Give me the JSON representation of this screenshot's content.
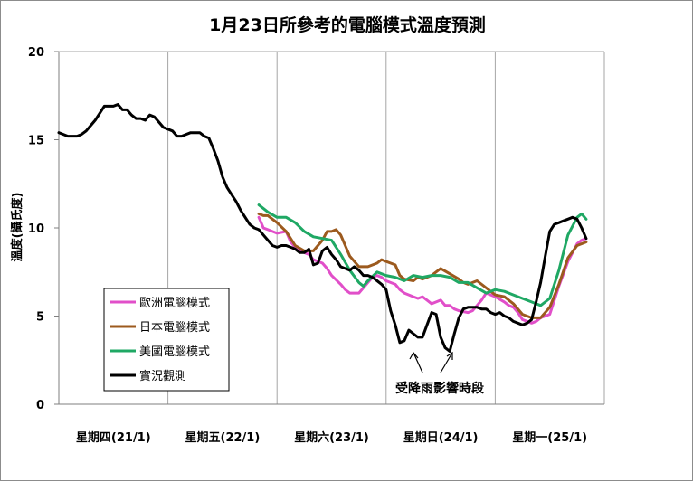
{
  "chart_data": {
    "type": "line",
    "title": "1月23日所參考的電腦模式溫度預測",
    "ylabel": "溫度(攝氏度)",
    "xlabel": "",
    "ylim": [
      0,
      20
    ],
    "yticks": [
      0,
      5,
      10,
      15,
      20
    ],
    "xlim": [
      0,
      120
    ],
    "categories": [
      "星期四(21/1)",
      "星期五(22/1)",
      "星期六(23/1)",
      "星期日(24/1)",
      "星期一(25/1)"
    ],
    "category_centers": [
      12,
      36,
      60,
      84,
      108
    ],
    "day_boundaries": [
      24,
      48,
      72,
      96
    ],
    "legend_position": "left-bottom",
    "annotation": "受降雨影響時段",
    "series": [
      {
        "name": "歐洲電腦模式",
        "color": "#e14fc9",
        "x": [
          44,
          45,
          46,
          48,
          50,
          51,
          52,
          54,
          55,
          56,
          58,
          59,
          60,
          62,
          63,
          64,
          66,
          68,
          69,
          70,
          71,
          72,
          74,
          75,
          76,
          78,
          79,
          80,
          81,
          82,
          84,
          85,
          86,
          87,
          88,
          90,
          91,
          92,
          93,
          94,
          96,
          98,
          99,
          100,
          101,
          102,
          104,
          105,
          106,
          108,
          110,
          112,
          114,
          115,
          116
        ],
        "y": [
          10.6,
          10.0,
          9.9,
          9.7,
          9.8,
          9.2,
          8.9,
          8.6,
          8.5,
          8.2,
          8.0,
          7.7,
          7.3,
          6.8,
          6.5,
          6.3,
          6.3,
          6.9,
          7.2,
          7.3,
          7.2,
          7.0,
          6.8,
          6.5,
          6.3,
          6.1,
          6.0,
          6.1,
          5.9,
          5.7,
          5.9,
          5.6,
          5.6,
          5.4,
          5.3,
          5.2,
          5.3,
          5.6,
          5.9,
          6.3,
          6.1,
          5.8,
          5.6,
          5.5,
          5.2,
          4.8,
          4.6,
          4.7,
          4.9,
          5.1,
          6.7,
          8.1,
          9.1,
          9.3,
          9.4
        ]
      },
      {
        "name": "日本電腦模式",
        "color": "#9c5a1e",
        "x": [
          44,
          45,
          46,
          48,
          50,
          52,
          54,
          56,
          58,
          59,
          60,
          61,
          62,
          64,
          66,
          68,
          70,
          71,
          72,
          74,
          75,
          76,
          78,
          79,
          80,
          82,
          84,
          86,
          88,
          89,
          90,
          92,
          94,
          95,
          96,
          98,
          100,
          102,
          104,
          106,
          108,
          110,
          112,
          114,
          116
        ],
        "y": [
          10.8,
          10.7,
          10.7,
          10.3,
          9.8,
          9.0,
          8.7,
          8.7,
          9.3,
          9.8,
          9.8,
          9.9,
          9.6,
          8.4,
          7.8,
          7.8,
          8.0,
          8.2,
          8.1,
          7.9,
          7.3,
          7.1,
          7.0,
          7.2,
          7.1,
          7.3,
          7.7,
          7.4,
          7.1,
          6.9,
          6.8,
          7.0,
          6.6,
          6.4,
          6.2,
          6.1,
          5.7,
          5.1,
          4.9,
          4.9,
          5.5,
          6.8,
          8.3,
          9.0,
          9.2
        ]
      },
      {
        "name": "美國電腦模式",
        "color": "#1fa864",
        "x": [
          44,
          46,
          48,
          50,
          52,
          54,
          56,
          58,
          60,
          62,
          64,
          66,
          67,
          68,
          70,
          72,
          74,
          76,
          78,
          80,
          82,
          84,
          86,
          88,
          90,
          92,
          94,
          96,
          98,
          100,
          102,
          104,
          106,
          108,
          110,
          112,
          114,
          115,
          116
        ],
        "y": [
          11.3,
          10.9,
          10.6,
          10.6,
          10.3,
          9.8,
          9.5,
          9.4,
          9.3,
          8.5,
          7.6,
          6.9,
          6.7,
          7.0,
          7.5,
          7.3,
          7.2,
          7.0,
          7.3,
          7.2,
          7.3,
          7.3,
          7.2,
          6.9,
          6.9,
          6.6,
          6.3,
          6.5,
          6.4,
          6.2,
          6.0,
          5.8,
          5.6,
          6.0,
          7.6,
          9.6,
          10.6,
          10.8,
          10.5
        ]
      },
      {
        "name": "實況觀測",
        "color": "#000000",
        "x": [
          0,
          1,
          2,
          4,
          5,
          6,
          7,
          8,
          9,
          10,
          11,
          12,
          13,
          14,
          15,
          16,
          17,
          18,
          19,
          20,
          21,
          22,
          23,
          24,
          25,
          26,
          27,
          28,
          29,
          30,
          31,
          32,
          33,
          34,
          35,
          36,
          37,
          38,
          39,
          40,
          41,
          42,
          43,
          44,
          45,
          46,
          47,
          48,
          49,
          50,
          51,
          52,
          53,
          54,
          55,
          56,
          57,
          58,
          59,
          60,
          61,
          62,
          63,
          64,
          65,
          66,
          67,
          68,
          69,
          70,
          71,
          72,
          73,
          74,
          75,
          76,
          77,
          78,
          79,
          80,
          81,
          82,
          83,
          84,
          85,
          86,
          87,
          88,
          89,
          90,
          91,
          92,
          93,
          94,
          95,
          96,
          97,
          98,
          99,
          100,
          101,
          102,
          103,
          104,
          105,
          106,
          107,
          108,
          109,
          110,
          111,
          112,
          113,
          114,
          115,
          116
        ],
        "y": [
          15.4,
          15.3,
          15.2,
          15.2,
          15.3,
          15.5,
          15.8,
          16.1,
          16.5,
          16.9,
          16.9,
          16.9,
          17.0,
          16.7,
          16.7,
          16.4,
          16.2,
          16.2,
          16.1,
          16.4,
          16.3,
          16.0,
          15.7,
          15.6,
          15.5,
          15.2,
          15.2,
          15.3,
          15.4,
          15.4,
          15.4,
          15.2,
          15.1,
          14.5,
          13.8,
          12.9,
          12.3,
          11.9,
          11.5,
          11.0,
          10.6,
          10.2,
          10.0,
          9.9,
          9.6,
          9.3,
          9.0,
          8.9,
          9.0,
          9.0,
          8.9,
          8.8,
          8.6,
          8.6,
          8.8,
          7.9,
          8.0,
          8.7,
          8.9,
          8.5,
          8.2,
          7.8,
          7.7,
          7.6,
          7.8,
          7.6,
          7.3,
          7.3,
          7.2,
          7.0,
          6.8,
          6.5,
          5.3,
          4.5,
          3.5,
          3.6,
          4.2,
          4.0,
          3.8,
          3.8,
          4.5,
          5.2,
          5.1,
          3.8,
          3.2,
          3.0,
          4.0,
          4.9,
          5.4,
          5.5,
          5.5,
          5.5,
          5.4,
          5.4,
          5.2,
          5.1,
          5.2,
          5.0,
          4.9,
          4.7,
          4.6,
          4.5,
          4.6,
          4.8,
          5.8,
          6.9,
          8.4,
          9.8,
          10.2,
          10.3,
          10.4,
          10.5,
          10.6,
          10.5,
          10.0,
          9.4
        ]
      }
    ]
  }
}
